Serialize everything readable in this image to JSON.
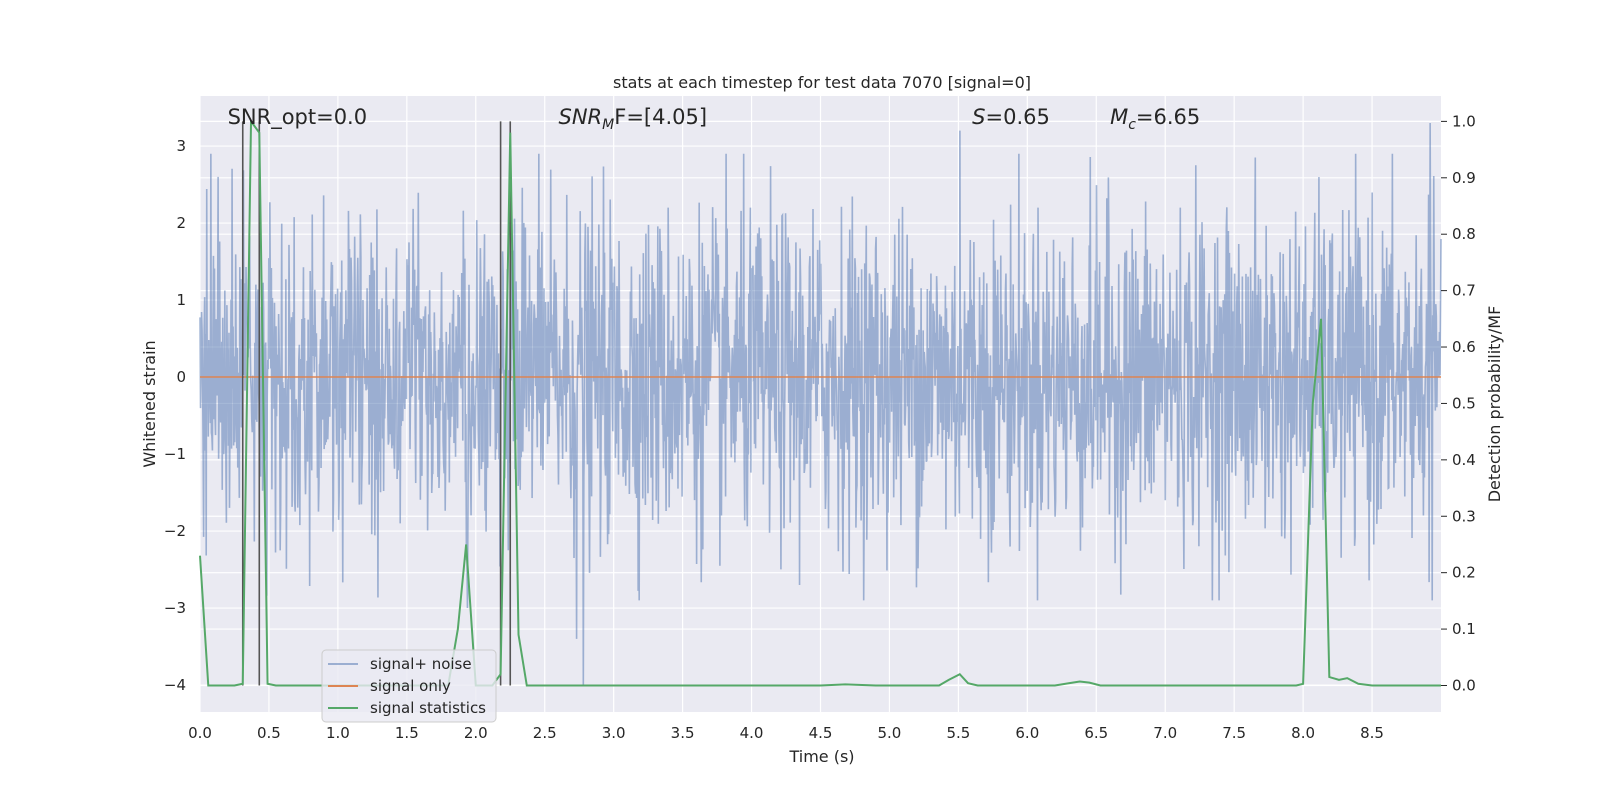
{
  "chart_data": {
    "type": "line",
    "title": "stats at each timestep for test data 7070 [signal=0]",
    "xlabel": "Time (s)",
    "ylabel": "Whitened strain",
    "ylabel_right": "Detection probability/MF",
    "xlim": [
      0,
      9.0
    ],
    "ylim": [
      -4.35,
      3.65
    ],
    "ylim_right": [
      -0.047,
      1.045
    ],
    "x_ticks": [
      0.0,
      0.5,
      1.0,
      1.5,
      2.0,
      2.5,
      3.0,
      3.5,
      4.0,
      4.5,
      5.0,
      5.5,
      6.0,
      6.5,
      7.0,
      7.5,
      8.0,
      8.5
    ],
    "y_ticks": [
      -4,
      -3,
      -2,
      -1,
      0,
      1,
      2,
      3
    ],
    "y_ticks_right": [
      0.0,
      0.1,
      0.2,
      0.3,
      0.4,
      0.5,
      0.6,
      0.7,
      0.8,
      0.9,
      1.0
    ],
    "grid": true,
    "legend_position": "lower-left",
    "annotations": [
      {
        "text": "SNR_opt=0.0",
        "x": 0.2
      },
      {
        "prefix": "SNR",
        "sub": "M",
        "suffix": "F=[4.05]",
        "x": 2.6
      },
      {
        "prefix": "S",
        "sub": "",
        "suffix": "=0.65",
        "x": 5.6
      },
      {
        "prefix": "M",
        "sub": "c",
        "suffix": "=6.65",
        "x": 6.6
      }
    ],
    "vlines": [
      0.31,
      0.43,
      2.18,
      2.25
    ],
    "series": [
      {
        "name": "signal+ noise",
        "color": "#4c72b0",
        "description": "dense whitened noise, amplitude mostly within about ±2, peaks near ±3",
        "amplitude": 1.9,
        "peaks": [
          [
            0.13,
            2.6
          ],
          [
            2.78,
            -4.0
          ],
          [
            5.51,
            3.2
          ],
          [
            8.92,
            3.3
          ],
          [
            1.94,
            -3.0
          ],
          [
            2.73,
            -3.4
          ]
        ]
      },
      {
        "name": "signal only",
        "color": "#dd8452",
        "x": [
          0.0,
          9.0
        ],
        "y": [
          0.0,
          0.0
        ]
      },
      {
        "name": "signal statistics",
        "color": "#55a868",
        "axis": "right",
        "x": [
          0.0,
          0.06,
          0.12,
          0.25,
          0.31,
          0.37,
          0.43,
          0.49,
          0.55,
          0.62,
          1.8,
          1.87,
          1.93,
          2.0,
          2.06,
          2.12,
          2.18,
          2.25,
          2.31,
          2.37,
          2.43,
          4.5,
          4.68,
          4.9,
          5.36,
          5.43,
          5.51,
          5.57,
          5.64,
          5.75,
          6.2,
          6.3,
          6.38,
          6.45,
          6.53,
          7.95,
          8.0,
          8.07,
          8.13,
          8.19,
          8.26,
          8.32,
          8.4,
          8.5,
          9.0
        ],
        "y": [
          0.23,
          0.0,
          0.0,
          0.0,
          0.003,
          1.0,
          0.98,
          0.003,
          0.0,
          0.0,
          0.0,
          0.1,
          0.25,
          0.0,
          0.0,
          0.0,
          0.02,
          0.98,
          0.09,
          0.0,
          0.0,
          0.0,
          0.002,
          0.0,
          0.0,
          0.01,
          0.02,
          0.004,
          0.0,
          0.0,
          0.0,
          0.004,
          0.007,
          0.005,
          0.0,
          0.0,
          0.003,
          0.5,
          0.65,
          0.015,
          0.01,
          0.013,
          0.003,
          0.0,
          0.0
        ]
      }
    ]
  }
}
